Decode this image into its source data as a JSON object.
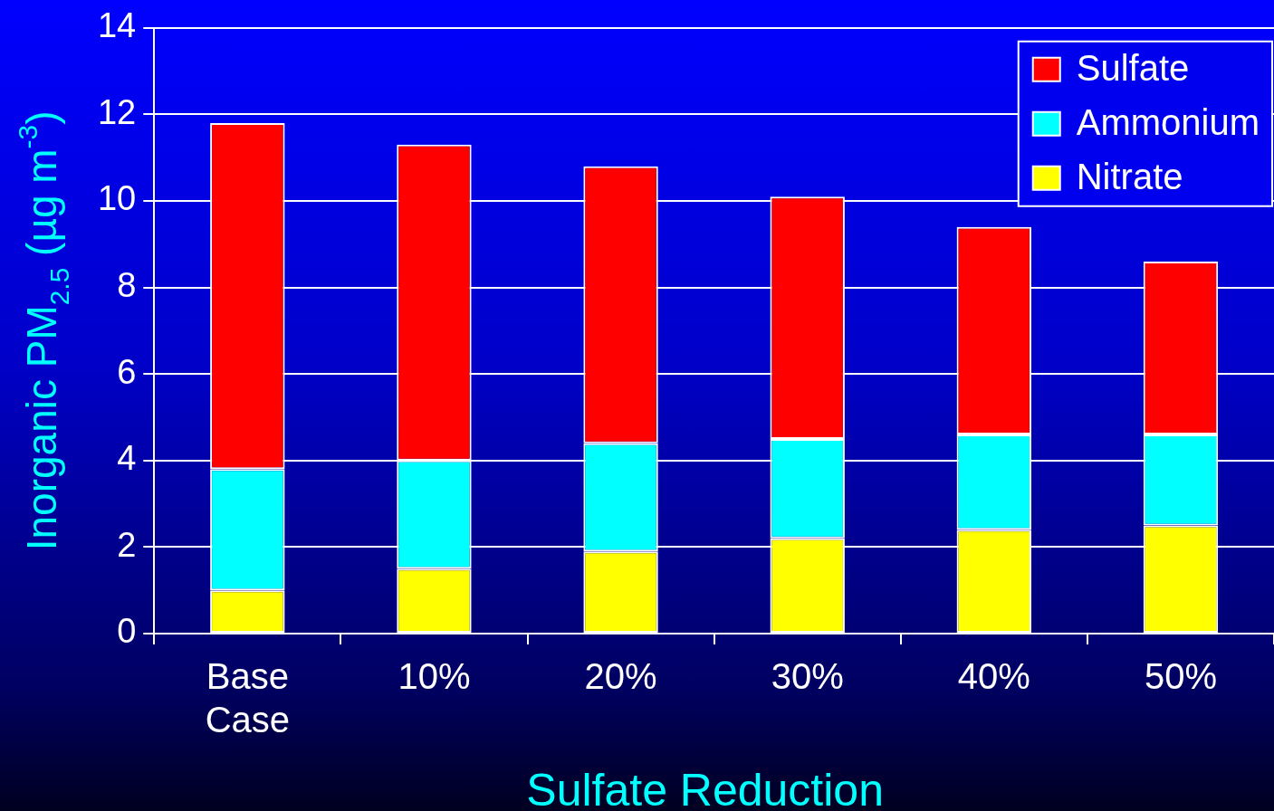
{
  "chart_data": {
    "type": "bar",
    "stacked": true,
    "xlabel": "Sulfate Reduction",
    "ylabel": "Inorganic PM$_{2.5}$ (µg m$^{-3}$)",
    "categories": [
      "Base Case",
      "10%",
      "20%",
      "30%",
      "40%",
      "50%"
    ],
    "series": [
      {
        "name": "Nitrate",
        "color": "#ffff00",
        "values": [
          1.0,
          1.5,
          1.9,
          2.2,
          2.4,
          2.5
        ]
      },
      {
        "name": "Ammonium",
        "color": "#00ffff",
        "values": [
          2.8,
          2.5,
          2.5,
          2.3,
          2.2,
          2.1
        ]
      },
      {
        "name": "Sulfate",
        "color": "#ff0000",
        "values": [
          8.0,
          7.3,
          6.4,
          5.6,
          4.8,
          4.0
        ]
      }
    ],
    "ylim": [
      0,
      14
    ],
    "yticks": [
      0,
      2,
      4,
      6,
      8,
      10,
      12,
      14
    ],
    "grid": "y",
    "legend": "top right"
  }
}
